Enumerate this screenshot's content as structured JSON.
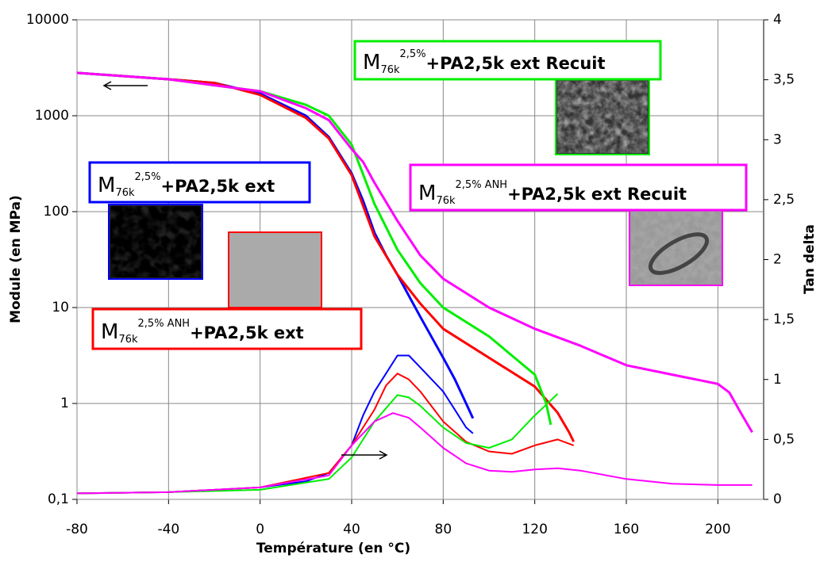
{
  "chart_data": {
    "type": "line",
    "xlabel": "Température (en °C)",
    "ylabel": "Module (en MPa)",
    "y2label": "Tan delta",
    "xlim": [
      -80,
      220
    ],
    "xticks": [
      -80,
      -40,
      0,
      40,
      80,
      120,
      160,
      200
    ],
    "ylim": [
      0.1,
      10000
    ],
    "ylog": true,
    "yticks": [
      {
        "value": 0.1,
        "label": "0,1"
      },
      1,
      10,
      100,
      1000,
      10000
    ],
    "y2lim": [
      0,
      4
    ],
    "y2ticks": [
      0,
      {
        "value": 0.5,
        "label": "0,5"
      },
      1,
      {
        "value": 1.5,
        "label": "1,5"
      },
      2,
      {
        "value": 2.5,
        "label": "2,5"
      },
      3,
      {
        "value": 3.5,
        "label": "3,5"
      },
      4
    ],
    "grid": true,
    "series": [
      {
        "color": "#0000ff",
        "x": [
          -80,
          -40,
          -20,
          0,
          20,
          30,
          40,
          45,
          50,
          55,
          60,
          70,
          80,
          85,
          90,
          93
        ],
        "values": [
          2800,
          2400,
          2200,
          1700,
          1000,
          600,
          250,
          130,
          60,
          35,
          22,
          8,
          3,
          1.8,
          1,
          0.7
        ]
      },
      {
        "color": "#ff0000",
        "x": [
          -80,
          -40,
          -20,
          0,
          20,
          30,
          40,
          50,
          60,
          70,
          80,
          100,
          120,
          130,
          135,
          137
        ],
        "values": [
          2800,
          2400,
          2200,
          1650,
          950,
          580,
          240,
          55,
          22,
          11,
          6,
          3,
          1.5,
          0.8,
          0.5,
          0.4
        ]
      },
      {
        "color": "#00ee00",
        "x": [
          -80,
          -40,
          0,
          20,
          30,
          40,
          50,
          60,
          70,
          80,
          100,
          120,
          125,
          127
        ],
        "values": [
          2800,
          2400,
          1800,
          1300,
          1000,
          500,
          120,
          40,
          18,
          10,
          5,
          2,
          1,
          0.6
        ]
      },
      {
        "color": "#ff00ff",
        "x": [
          -80,
          -40,
          0,
          20,
          30,
          40,
          45,
          50,
          60,
          70,
          80,
          100,
          120,
          140,
          160,
          180,
          200,
          205,
          210,
          215
        ],
        "values": [
          2800,
          2400,
          1800,
          1200,
          900,
          450,
          330,
          200,
          80,
          35,
          20,
          10,
          6,
          4,
          2.5,
          2,
          1.6,
          1.3,
          0.8,
          0.5
        ]
      },
      {
        "color": "#0000ff",
        "axis": "y2",
        "x": [
          -80,
          -40,
          0,
          20,
          30,
          40,
          45,
          50,
          55,
          60,
          65,
          70,
          80,
          85,
          90,
          93
        ],
        "values": [
          0.05,
          0.06,
          0.1,
          0.15,
          0.22,
          0.45,
          0.7,
          0.9,
          1.05,
          1.2,
          1.2,
          1.1,
          0.9,
          0.75,
          0.6,
          0.55
        ]
      },
      {
        "color": "#ff0000",
        "axis": "y2",
        "x": [
          -80,
          -40,
          0,
          30,
          40,
          50,
          55,
          60,
          65,
          70,
          80,
          90,
          100,
          110,
          120,
          130,
          137
        ],
        "values": [
          0.05,
          0.06,
          0.1,
          0.22,
          0.45,
          0.75,
          0.95,
          1.05,
          1.0,
          0.9,
          0.65,
          0.48,
          0.4,
          0.38,
          0.45,
          0.5,
          0.45
        ]
      },
      {
        "color": "#00ee00",
        "axis": "y2",
        "x": [
          -80,
          -40,
          0,
          30,
          40,
          50,
          60,
          65,
          70,
          80,
          90,
          100,
          110,
          120,
          130
        ],
        "values": [
          0.05,
          0.06,
          0.08,
          0.17,
          0.35,
          0.65,
          0.87,
          0.85,
          0.78,
          0.6,
          0.47,
          0.43,
          0.5,
          0.7,
          0.88
        ]
      },
      {
        "color": "#ff00ff",
        "axis": "y2",
        "x": [
          -80,
          -40,
          0,
          30,
          40,
          50,
          58,
          65,
          70,
          80,
          90,
          100,
          110,
          120,
          130,
          140,
          160,
          180,
          200,
          215
        ],
        "values": [
          0.05,
          0.06,
          0.1,
          0.2,
          0.45,
          0.65,
          0.72,
          0.68,
          0.6,
          0.43,
          0.3,
          0.24,
          0.23,
          0.25,
          0.26,
          0.24,
          0.17,
          0.13,
          0.12,
          0.12
        ]
      }
    ],
    "annotations": [
      {
        "color": "#0000ff",
        "base": "M",
        "sub": "76k",
        "sup": "2,5%",
        "rest": "+PA2,5k ext"
      },
      {
        "color": "#ff0000",
        "base": "M",
        "sub": "76k",
        "sup": "2,5% ANH",
        "rest": "+PA2,5k ext"
      },
      {
        "color": "#00ee00",
        "base": "M",
        "sub": "76k",
        "sup": "2,5%",
        "rest": "+PA2,5k ext Recuit"
      },
      {
        "color": "#ff00ff",
        "base": "M",
        "sub": "76k",
        "sup": "2,5% ANH",
        "rest": "+PA2,5k ext Recuit"
      }
    ]
  }
}
